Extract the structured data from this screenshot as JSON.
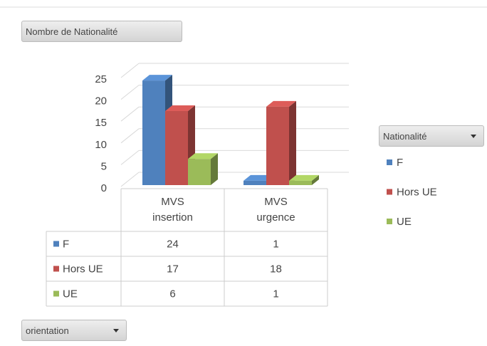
{
  "chart_data": {
    "type": "bar3d",
    "filter_button": "Nombre de Nationalité",
    "legend_title": "Nationalité",
    "axis_button": "orientation",
    "categories": [
      "MVS insertion",
      "MVS urgence"
    ],
    "series": [
      {
        "name": "F",
        "color": "#4f81bd",
        "values": [
          24,
          1
        ]
      },
      {
        "name": "Hors UE",
        "color": "#c0504d",
        "values": [
          17,
          18
        ]
      },
      {
        "name": "UE",
        "color": "#9bbb59",
        "values": [
          6,
          1
        ]
      }
    ],
    "ylim": [
      0,
      25
    ],
    "yticks": [
      0,
      5,
      10,
      15,
      20,
      25
    ],
    "grid": true,
    "legend": "right",
    "data_table": true
  }
}
